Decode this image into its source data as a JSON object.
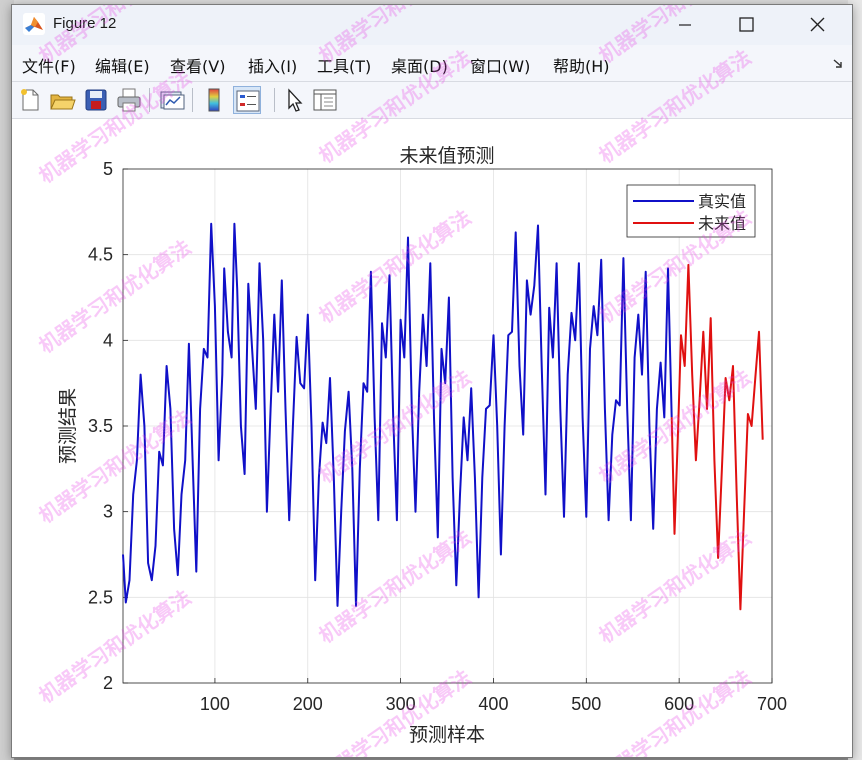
{
  "window": {
    "title": "Figure 12",
    "menu": [
      "文件(F)",
      "编辑(E)",
      "查看(V)",
      "插入(I)",
      "工具(T)",
      "桌面(D)",
      "窗口(W)",
      "帮助(H)"
    ],
    "toolbar_icons": [
      "new-figure-icon",
      "open-icon",
      "save-icon",
      "print-icon",
      "link-plot-icon",
      "colorbar-icon",
      "legend-icon",
      "pointer-icon",
      "property-inspector-icon"
    ]
  },
  "watermark": "机器学习和优化算法",
  "chart_data": {
    "type": "line",
    "title": "未来值预测",
    "xlabel": "预测样本",
    "ylabel": "预测结果",
    "xlim": [
      1,
      700
    ],
    "ylim": [
      2,
      5
    ],
    "xticks": [
      100,
      200,
      300,
      400,
      500,
      600,
      700
    ],
    "yticks": [
      2,
      2.5,
      3,
      3.5,
      4,
      4.5,
      5
    ],
    "grid": true,
    "legend_position": "top-right",
    "series": [
      {
        "name": "真实值",
        "color": "#1010c8",
        "points": [
          [
            1,
            2.75
          ],
          [
            4,
            2.47
          ],
          [
            8,
            2.6
          ],
          [
            12,
            3.1
          ],
          [
            16,
            3.3
          ],
          [
            20,
            3.8
          ],
          [
            24,
            3.5
          ],
          [
            28,
            2.7
          ],
          [
            32,
            2.6
          ],
          [
            36,
            2.8
          ],
          [
            40,
            3.35
          ],
          [
            44,
            3.27
          ],
          [
            48,
            3.85
          ],
          [
            52,
            3.6
          ],
          [
            56,
            2.9
          ],
          [
            60,
            2.63
          ],
          [
            64,
            3.1
          ],
          [
            68,
            3.3
          ],
          [
            72,
            3.98
          ],
          [
            76,
            3.3
          ],
          [
            80,
            2.65
          ],
          [
            84,
            3.6
          ],
          [
            88,
            3.95
          ],
          [
            92,
            3.9
          ],
          [
            96,
            4.68
          ],
          [
            100,
            4.2
          ],
          [
            104,
            3.3
          ],
          [
            108,
            3.8
          ],
          [
            110,
            4.42
          ],
          [
            114,
            4.05
          ],
          [
            118,
            3.9
          ],
          [
            121,
            4.68
          ],
          [
            124,
            4.3
          ],
          [
            128,
            3.5
          ],
          [
            132,
            3.22
          ],
          [
            136,
            4.33
          ],
          [
            140,
            3.95
          ],
          [
            144,
            3.6
          ],
          [
            148,
            4.45
          ],
          [
            152,
            4.0
          ],
          [
            156,
            3.0
          ],
          [
            160,
            3.6
          ],
          [
            164,
            4.15
          ],
          [
            168,
            3.7
          ],
          [
            172,
            4.35
          ],
          [
            176,
            3.6
          ],
          [
            180,
            2.95
          ],
          [
            184,
            3.5
          ],
          [
            188,
            4.02
          ],
          [
            192,
            3.75
          ],
          [
            196,
            3.72
          ],
          [
            200,
            4.15
          ],
          [
            204,
            3.5
          ],
          [
            208,
            2.6
          ],
          [
            212,
            3.2
          ],
          [
            216,
            3.52
          ],
          [
            220,
            3.4
          ],
          [
            224,
            3.78
          ],
          [
            228,
            3.2
          ],
          [
            232,
            2.45
          ],
          [
            236,
            3.0
          ],
          [
            240,
            3.47
          ],
          [
            244,
            3.7
          ],
          [
            248,
            3.25
          ],
          [
            252,
            2.45
          ],
          [
            256,
            3.25
          ],
          [
            260,
            3.75
          ],
          [
            264,
            3.7
          ],
          [
            268,
            4.4
          ],
          [
            272,
            3.55
          ],
          [
            276,
            2.95
          ],
          [
            280,
            4.1
          ],
          [
            284,
            3.9
          ],
          [
            288,
            4.38
          ],
          [
            292,
            3.55
          ],
          [
            296,
            2.95
          ],
          [
            300,
            4.12
          ],
          [
            304,
            3.9
          ],
          [
            308,
            4.6
          ],
          [
            312,
            3.6
          ],
          [
            316,
            3.0
          ],
          [
            320,
            3.7
          ],
          [
            324,
            4.15
          ],
          [
            328,
            3.85
          ],
          [
            332,
            4.45
          ],
          [
            336,
            3.55
          ],
          [
            340,
            2.85
          ],
          [
            344,
            3.95
          ],
          [
            348,
            3.75
          ],
          [
            352,
            4.25
          ],
          [
            356,
            3.2
          ],
          [
            360,
            2.57
          ],
          [
            364,
            3.1
          ],
          [
            368,
            3.55
          ],
          [
            372,
            3.3
          ],
          [
            376,
            3.72
          ],
          [
            380,
            3.2
          ],
          [
            384,
            2.5
          ],
          [
            388,
            3.2
          ],
          [
            392,
            3.6
          ],
          [
            396,
            3.62
          ],
          [
            400,
            4.03
          ],
          [
            404,
            3.5
          ],
          [
            408,
            2.75
          ],
          [
            412,
            3.5
          ],
          [
            416,
            4.03
          ],
          [
            420,
            4.05
          ],
          [
            424,
            4.63
          ],
          [
            428,
            3.85
          ],
          [
            432,
            3.45
          ],
          [
            436,
            4.35
          ],
          [
            440,
            4.15
          ],
          [
            444,
            4.32
          ],
          [
            448,
            4.67
          ],
          [
            452,
            3.85
          ],
          [
            456,
            3.1
          ],
          [
            460,
            4.19
          ],
          [
            464,
            3.9
          ],
          [
            468,
            4.45
          ],
          [
            472,
            3.6
          ],
          [
            476,
            2.97
          ],
          [
            480,
            3.8
          ],
          [
            484,
            4.16
          ],
          [
            488,
            4.0
          ],
          [
            492,
            4.45
          ],
          [
            496,
            3.55
          ],
          [
            500,
            2.97
          ],
          [
            504,
            3.95
          ],
          [
            508,
            4.2
          ],
          [
            512,
            4.03
          ],
          [
            516,
            4.47
          ],
          [
            520,
            3.6
          ],
          [
            524,
            2.95
          ],
          [
            528,
            3.45
          ],
          [
            532,
            3.65
          ],
          [
            536,
            3.62
          ],
          [
            540,
            4.48
          ],
          [
            544,
            3.6
          ],
          [
            548,
            2.95
          ],
          [
            552,
            3.9
          ],
          [
            556,
            4.15
          ],
          [
            560,
            3.8
          ],
          [
            564,
            4.4
          ],
          [
            568,
            3.5
          ],
          [
            572,
            2.9
          ],
          [
            576,
            3.6
          ],
          [
            580,
            3.87
          ],
          [
            584,
            3.55
          ],
          [
            588,
            4.42
          ],
          [
            592,
            3.55
          ]
        ],
        "legend": true
      },
      {
        "name": "未来值",
        "color": "#e01010",
        "points": [
          [
            592,
            3.55
          ],
          [
            595,
            2.87
          ],
          [
            599,
            3.5
          ],
          [
            602,
            4.03
          ],
          [
            606,
            3.85
          ],
          [
            610,
            4.44
          ],
          [
            614,
            3.8
          ],
          [
            618,
            3.3
          ],
          [
            622,
            3.65
          ],
          [
            626,
            4.05
          ],
          [
            630,
            3.6
          ],
          [
            634,
            4.13
          ],
          [
            638,
            3.3
          ],
          [
            642,
            2.73
          ],
          [
            646,
            3.25
          ],
          [
            650,
            3.78
          ],
          [
            654,
            3.65
          ],
          [
            658,
            3.85
          ],
          [
            662,
            3.1
          ],
          [
            666,
            2.43
          ],
          [
            670,
            3.0
          ],
          [
            674,
            3.57
          ],
          [
            678,
            3.5
          ],
          [
            682,
            3.78
          ],
          [
            686,
            4.05
          ],
          [
            690,
            3.42
          ]
        ],
        "legend": true
      }
    ]
  }
}
